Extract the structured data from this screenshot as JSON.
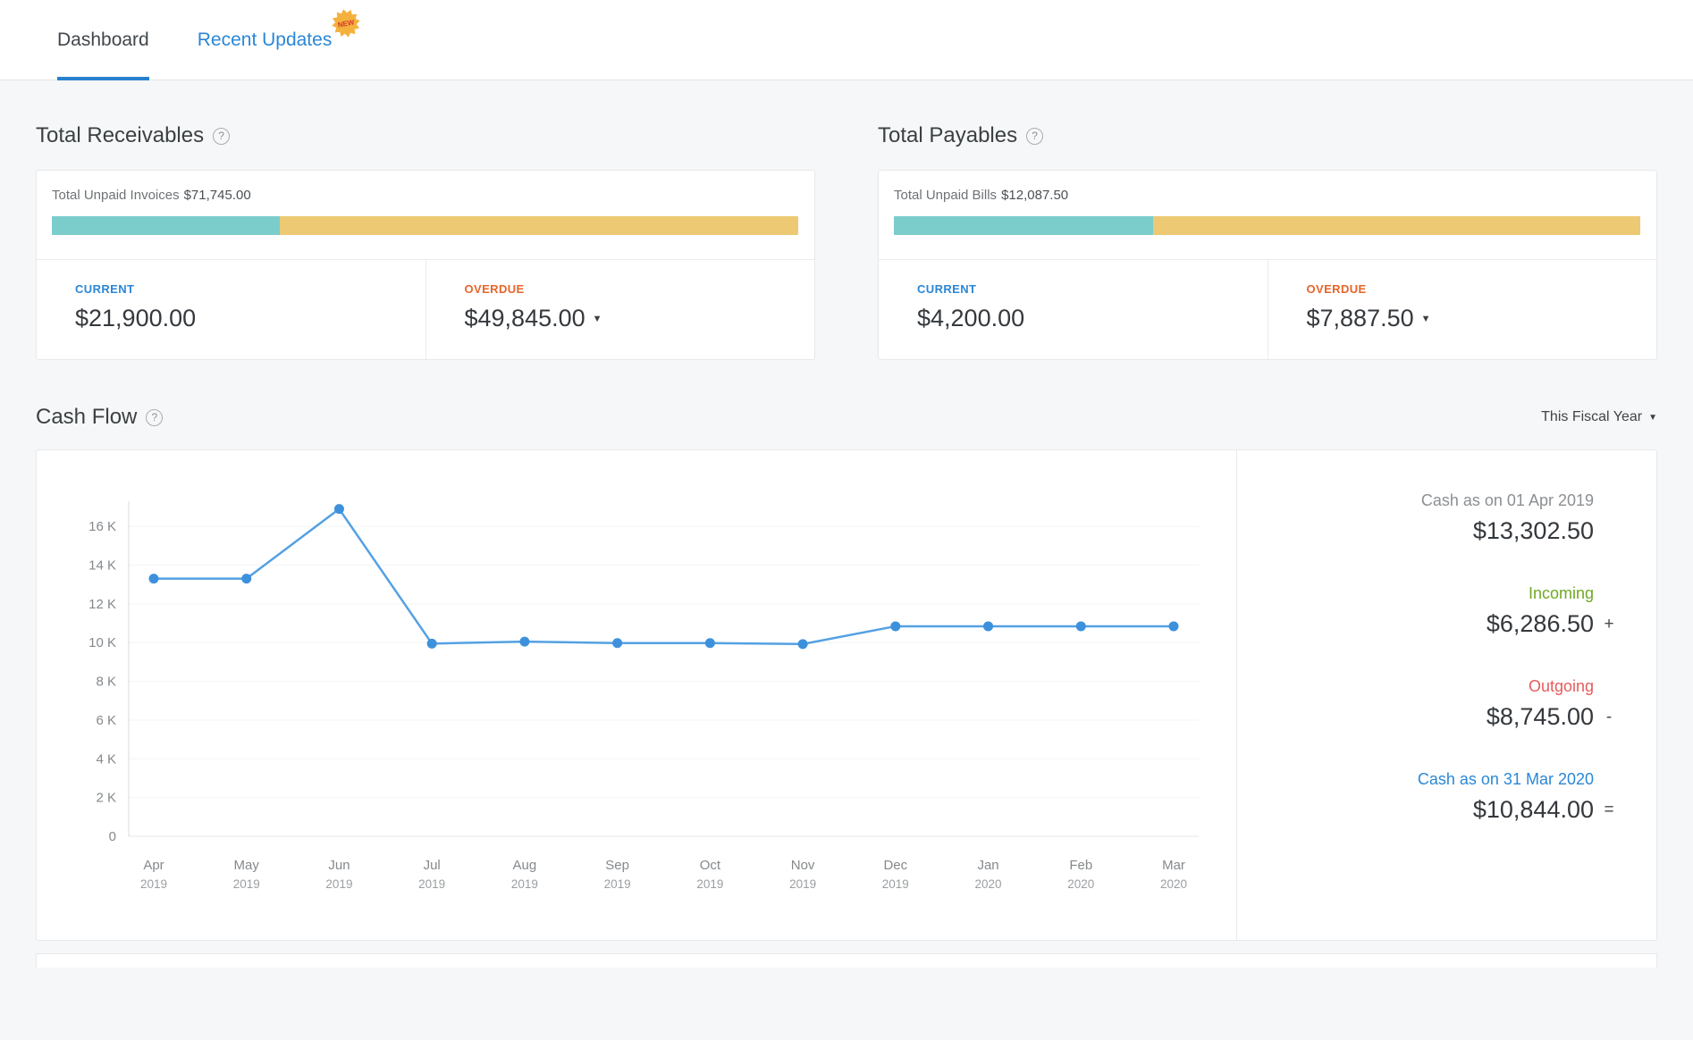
{
  "tabs": {
    "dashboard": "Dashboard",
    "recent_updates": "Recent Updates",
    "new_badge": "NEW"
  },
  "icons": {
    "help": "?",
    "caret_down": "▼"
  },
  "receivables": {
    "title": "Total Receivables",
    "summary_label": "Total Unpaid Invoices",
    "summary_amount": "$71,745.00",
    "current_pct": 30.5,
    "current_label": "CURRENT",
    "current_amount": "$21,900.00",
    "overdue_label": "OVERDUE",
    "overdue_amount": "$49,845.00"
  },
  "payables": {
    "title": "Total Payables",
    "summary_label": "Total Unpaid Bills",
    "summary_amount": "$12,087.50",
    "current_pct": 34.7,
    "current_label": "CURRENT",
    "current_amount": "$4,200.00",
    "overdue_label": "OVERDUE",
    "overdue_amount": "$7,887.50"
  },
  "cashflow": {
    "title": "Cash Flow",
    "period_selector": "This Fiscal Year",
    "summary": {
      "opening_label": "Cash as on 01 Apr 2019",
      "opening_amount": "$13,302.50",
      "incoming_label": "Incoming",
      "incoming_amount": "$6,286.50",
      "incoming_op": "+",
      "outgoing_label": "Outgoing",
      "outgoing_amount": "$8,745.00",
      "outgoing_op": "-",
      "closing_label": "Cash as on 31 Mar 2020",
      "closing_amount": "$10,844.00",
      "closing_op": "="
    }
  },
  "chart_data": {
    "type": "line",
    "title": "Cash Flow - This Fiscal Year",
    "xlabel": "",
    "ylabel": "",
    "categories": [
      {
        "month": "Apr",
        "year": "2019"
      },
      {
        "month": "May",
        "year": "2019"
      },
      {
        "month": "Jun",
        "year": "2019"
      },
      {
        "month": "Jul",
        "year": "2019"
      },
      {
        "month": "Aug",
        "year": "2019"
      },
      {
        "month": "Sep",
        "year": "2019"
      },
      {
        "month": "Oct",
        "year": "2019"
      },
      {
        "month": "Nov",
        "year": "2019"
      },
      {
        "month": "Dec",
        "year": "2019"
      },
      {
        "month": "Jan",
        "year": "2020"
      },
      {
        "month": "Feb",
        "year": "2020"
      },
      {
        "month": "Mar",
        "year": "2020"
      }
    ],
    "series": [
      {
        "name": "Cash",
        "values": [
          13302.5,
          13302.5,
          16900,
          9950,
          10050,
          9975,
          9975,
          9925,
          10844,
          10844,
          10844,
          10844
        ]
      }
    ],
    "ylim": [
      0,
      17300
    ],
    "ytick_step": 2000,
    "ytick_labels": [
      "0",
      "2 K",
      "4 K",
      "6 K",
      "8 K",
      "10 K",
      "12 K",
      "14 K",
      "16 K"
    ],
    "grid": true,
    "legend_position": "none",
    "line_color": "#54a1e3",
    "point_color": "#3d91dc"
  },
  "colors": {
    "accent_blue": "#2b87d6",
    "overdue_orange": "#e8652a",
    "bar_current_teal": "#7bcdcc",
    "bar_overdue_gold": "#ecc972",
    "incoming_green": "#71a824",
    "outgoing_red": "#e55c5c"
  }
}
